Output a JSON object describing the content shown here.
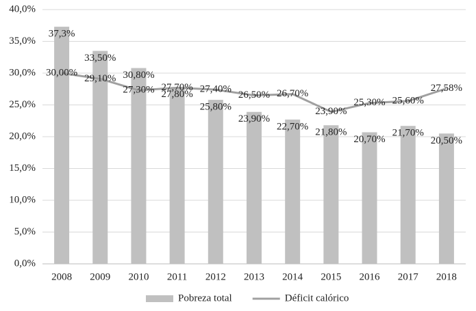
{
  "chart_data": {
    "type": "bar",
    "categories": [
      "2008",
      "2009",
      "2010",
      "2011",
      "2012",
      "2013",
      "2014",
      "2015",
      "2016",
      "2017",
      "2018"
    ],
    "series": [
      {
        "name": "Pobreza total",
        "type": "bar",
        "color": "#c0c0c0",
        "values": [
          37.3,
          33.5,
          30.8,
          27.8,
          25.8,
          23.9,
          22.7,
          21.8,
          20.7,
          21.7,
          20.5
        ],
        "value_labels": [
          "37,3%",
          "33,50%",
          "30,80%",
          "27,80%",
          "25,80%",
          "23,90%",
          "22,70%",
          "21,80%",
          "20,70%",
          "21,70%",
          "20,50%"
        ]
      },
      {
        "name": "Déficit calórico",
        "type": "line",
        "color": "#a0a0a0",
        "values": [
          30.0,
          29.1,
          27.3,
          27.7,
          27.4,
          26.5,
          26.7,
          23.9,
          25.3,
          25.6,
          27.58
        ],
        "value_labels": [
          "30,00%",
          "29,10%",
          "27,30%",
          "27,70%",
          "27,40%",
          "26,50%",
          "26,70%",
          "23,90%",
          "25,30%",
          "25,60%",
          "27,58%"
        ]
      }
    ],
    "ylim": [
      0,
      40
    ],
    "yticks": [
      {
        "value": 0,
        "label": "0,0%"
      },
      {
        "value": 5,
        "label": "5,0%"
      },
      {
        "value": 10,
        "label": "10,0%"
      },
      {
        "value": 15,
        "label": "15,0%"
      },
      {
        "value": 20,
        "label": "20,0%"
      },
      {
        "value": 25,
        "label": "25,0%"
      },
      {
        "value": 30,
        "label": "30,0%"
      },
      {
        "value": 35,
        "label": "35,0%"
      },
      {
        "value": 40,
        "label": "40,0%"
      }
    ],
    "grid": true,
    "legend": "bottom"
  }
}
